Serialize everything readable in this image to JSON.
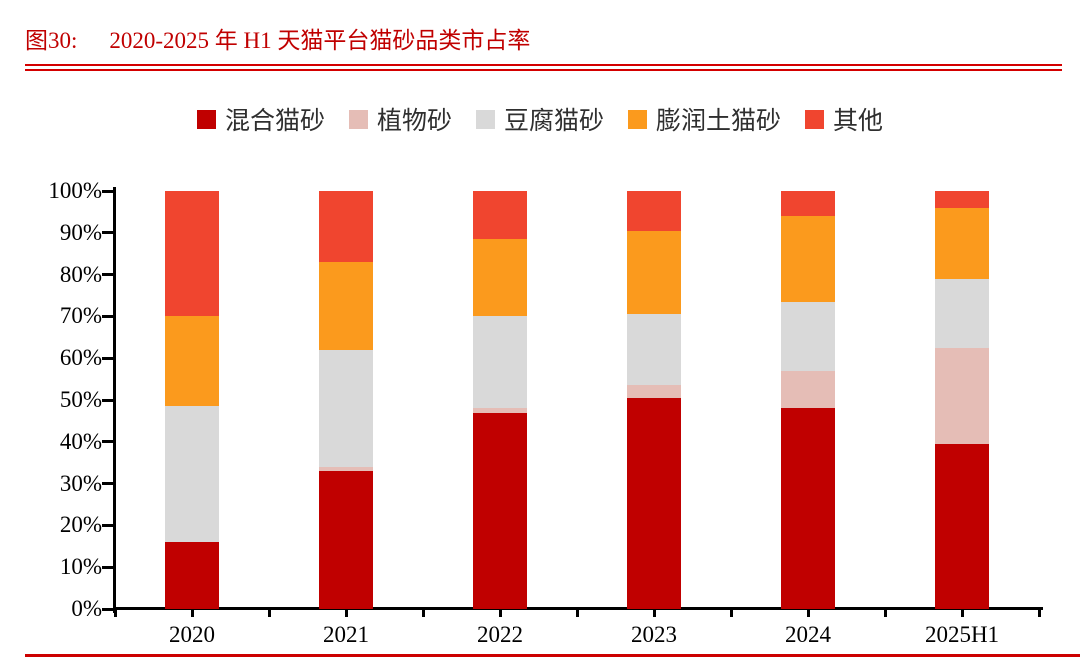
{
  "figure": {
    "label": "图30:",
    "title": "2020-2025 年 H1 天猫平台猫砂品类市占率"
  },
  "colors": {
    "title_red": "#c00000",
    "rule_red": "#d40000",
    "bottom_rule_red": "#cc0000",
    "axis_black": "#000000"
  },
  "chart_data": {
    "type": "bar",
    "stacked": true,
    "title": "2020-2025 年 H1 天猫平台猫砂品类市占率",
    "categories": [
      "2020",
      "2021",
      "2022",
      "2023",
      "2024",
      "2025H1"
    ],
    "series": [
      {
        "name": "混合猫砂",
        "color": "#c00000",
        "values": [
          16,
          33,
          47,
          50.5,
          48,
          39.5
        ]
      },
      {
        "name": "植物砂",
        "color": "#e5bdb6",
        "values": [
          0,
          1,
          1,
          3,
          9,
          23
        ]
      },
      {
        "name": "豆腐猫砂",
        "color": "#d9d9d9",
        "values": [
          32.5,
          28,
          22,
          17,
          16.5,
          16.5
        ]
      },
      {
        "name": "膨润土猫砂",
        "color": "#fb9a1d",
        "values": [
          21.5,
          21,
          18.5,
          20,
          20.5,
          17
        ]
      },
      {
        "name": "其他",
        "color": "#f0452f",
        "values": [
          30,
          17,
          11.5,
          9.5,
          6,
          4
        ]
      }
    ],
    "xlabel": "",
    "ylabel": "",
    "ylim": [
      0,
      100
    ],
    "yticks": [
      "100%",
      "90%",
      "80%",
      "70%",
      "60%",
      "50%",
      "40%",
      "30%",
      "20%",
      "10%",
      "0%"
    ],
    "grid": false,
    "legend_position": "top-center"
  }
}
